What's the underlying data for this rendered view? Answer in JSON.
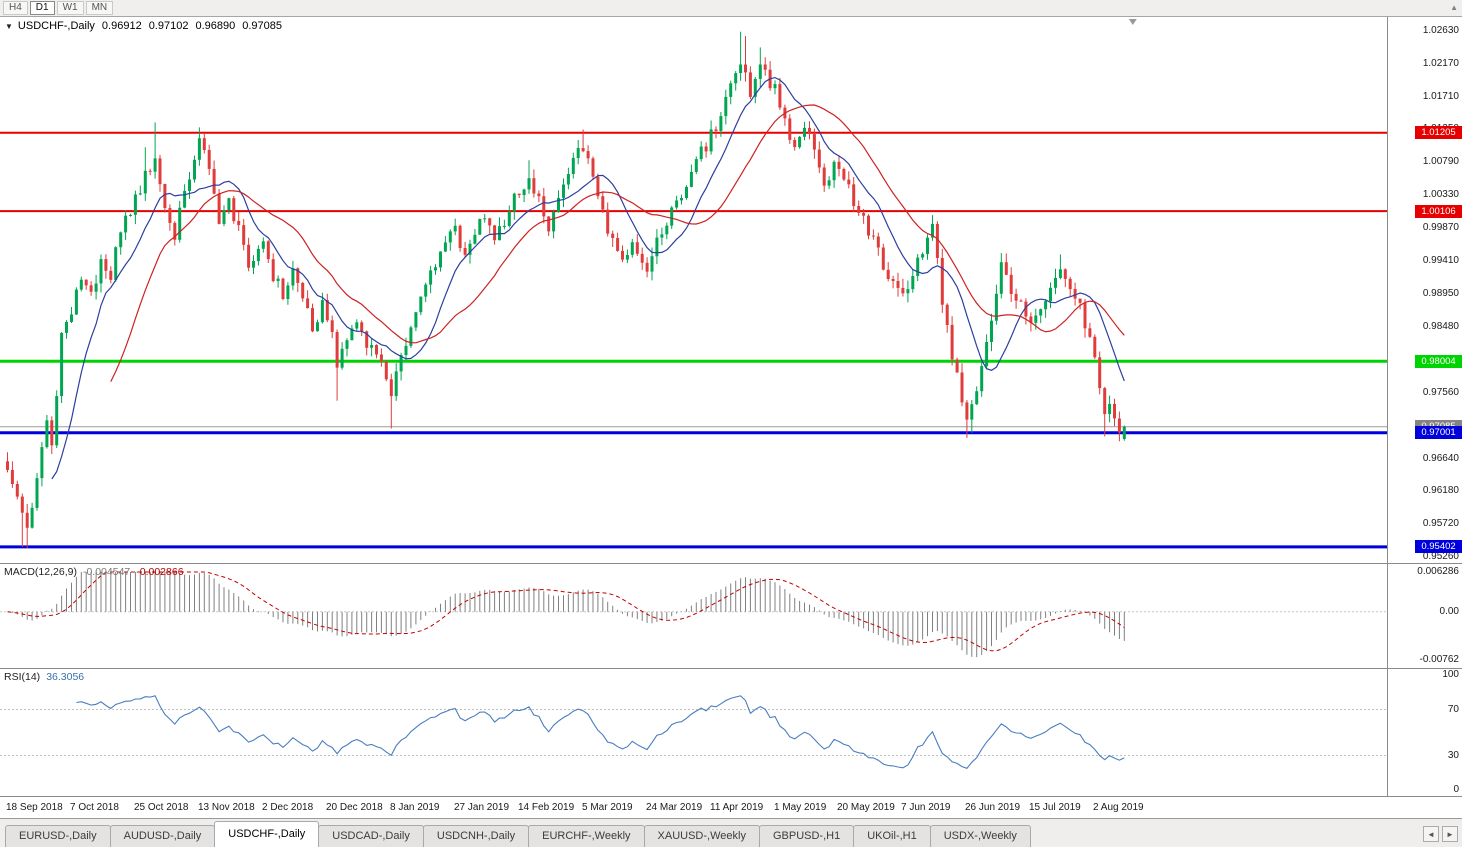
{
  "toolbar": {
    "timeframes": [
      {
        "label": "H4",
        "active": false
      },
      {
        "label": "D1",
        "active": true
      },
      {
        "label": "W1",
        "active": false
      },
      {
        "label": "MN",
        "active": false
      }
    ]
  },
  "chart_header": {
    "symbol": "USDCHF-,Daily",
    "open": "0.96912",
    "high": "0.97102",
    "low": "0.96890",
    "close": "0.97085"
  },
  "macd_header": {
    "name": "MACD(12,26,9)",
    "value_main": "-0.004547",
    "value_signal": "-0.002866"
  },
  "rsi_header": {
    "name": "RSI(14)",
    "value": "36.3056"
  },
  "chart_data": {
    "type": "candlestick",
    "symbol": "USDCHF",
    "timeframe": "Daily",
    "n_candles": 228,
    "current_ohlc": {
      "open": 0.96912,
      "high": 0.97102,
      "low": 0.9689,
      "close": 0.97085
    },
    "price_axis": {
      "tick_step": 0.0046,
      "ticks": [
        "1.02630",
        "1.02170",
        "1.01710",
        "1.01250",
        "1.00790",
        "1.00330",
        "0.99870",
        "0.99410",
        "0.98950",
        "0.98480",
        "0.98020",
        "0.97560",
        "0.97100",
        "0.96640",
        "0.96180",
        "0.95720",
        "0.95260"
      ]
    },
    "hlines": [
      {
        "price": 1.01205,
        "label": "1.01205",
        "color": "#e60000",
        "width": 2
      },
      {
        "price": 1.00106,
        "label": "1.00106",
        "color": "#e60000",
        "width": 2
      },
      {
        "price": 0.98004,
        "label": "0.98004",
        "color": "#00d400",
        "width": 3
      },
      {
        "price": 0.97001,
        "label": "0.97001",
        "color": "#0000dd",
        "width": 3
      },
      {
        "price": 0.95402,
        "label": "0.95402",
        "color": "#0000dd",
        "width": 3
      }
    ],
    "bid_line": {
      "price": 0.97085,
      "label": "0.97085",
      "color": "#9b9b9b",
      "tag_color": "#848484"
    },
    "x_labels": [
      {
        "i": 0,
        "label": "18 Sep 2018"
      },
      {
        "i": 13,
        "label": "7 Oct 2018"
      },
      {
        "i": 26,
        "label": "25 Oct 2018"
      },
      {
        "i": 39,
        "label": "13 Nov 2018"
      },
      {
        "i": 52,
        "label": "2 Dec 2018"
      },
      {
        "i": 65,
        "label": "20 Dec 2018"
      },
      {
        "i": 78,
        "label": "8 Jan 2019"
      },
      {
        "i": 91,
        "label": "27 Jan 2019"
      },
      {
        "i": 104,
        "label": "14 Feb 2019"
      },
      {
        "i": 117,
        "label": "5 Mar 2019"
      },
      {
        "i": 130,
        "label": "24 Mar 2019"
      },
      {
        "i": 143,
        "label": "11 Apr 2019"
      },
      {
        "i": 156,
        "label": "1 May 2019"
      },
      {
        "i": 169,
        "label": "20 May 2019"
      },
      {
        "i": 182,
        "label": "7 Jun 2019"
      },
      {
        "i": 195,
        "label": "26 Jun 2019"
      },
      {
        "i": 208,
        "label": "15 Jul 2019"
      },
      {
        "i": 221,
        "label": "2 Aug 2019"
      }
    ],
    "price_path": [
      [
        0,
        0.9655
      ],
      [
        2,
        0.9612
      ],
      [
        4,
        0.9562
      ],
      [
        6,
        0.9642
      ],
      [
        8,
        0.9718
      ],
      [
        9,
        0.9682
      ],
      [
        10,
        0.9762
      ],
      [
        11,
        0.9838
      ],
      [
        13,
        0.9868
      ],
      [
        15,
        0.9918
      ],
      [
        17,
        0.9892
      ],
      [
        19,
        0.9948
      ],
      [
        21,
        0.9922
      ],
      [
        23,
        0.9978
      ],
      [
        26,
        1.0028
      ],
      [
        28,
        1.0058
      ],
      [
        30,
        1.0088
      ],
      [
        32,
        1.0012
      ],
      [
        34,
        0.9972
      ],
      [
        36,
        1.0042
      ],
      [
        38,
        1.0088
      ],
      [
        39,
        1.0118
      ],
      [
        41,
        1.0062
      ],
      [
        43,
        1.0002
      ],
      [
        45,
        1.0022
      ],
      [
        47,
        0.9982
      ],
      [
        49,
        0.9942
      ],
      [
        52,
        0.9965
      ],
      [
        54,
        0.9922
      ],
      [
        56,
        0.9892
      ],
      [
        58,
        0.9928
      ],
      [
        60,
        0.9888
      ],
      [
        62,
        0.9852
      ],
      [
        64,
        0.9878
      ],
      [
        65,
        0.9862
      ],
      [
        67,
        0.9802
      ],
      [
        69,
        0.9832
      ],
      [
        71,
        0.9856
      ],
      [
        73,
        0.983
      ],
      [
        75,
        0.9806
      ],
      [
        77,
        0.9782
      ],
      [
        78,
        0.9762
      ],
      [
        80,
        0.98
      ],
      [
        82,
        0.9845
      ],
      [
        84,
        0.9885
      ],
      [
        86,
        0.9925
      ],
      [
        88,
        0.9955
      ],
      [
        91,
        0.9985
      ],
      [
        93,
        0.9952
      ],
      [
        95,
        0.9985
      ],
      [
        97,
        1.0008
      ],
      [
        99,
        0.9975
      ],
      [
        101,
        1.0
      ],
      [
        104,
        1.004
      ],
      [
        106,
        1.006
      ],
      [
        108,
        1.0022
      ],
      [
        110,
        0.9992
      ],
      [
        112,
        1.003
      ],
      [
        114,
        1.006
      ],
      [
        116,
        1.009
      ],
      [
        117,
        1.0105
      ],
      [
        119,
        1.005
      ],
      [
        121,
        1.0005
      ],
      [
        123,
        0.9975
      ],
      [
        125,
        0.9945
      ],
      [
        127,
        0.9965
      ],
      [
        130,
        0.9935
      ],
      [
        132,
        0.9965
      ],
      [
        134,
        0.9995
      ],
      [
        136,
        1.0015
      ],
      [
        138,
        1.0045
      ],
      [
        140,
        1.008
      ],
      [
        143,
        1.0115
      ],
      [
        145,
        1.015
      ],
      [
        147,
        1.019
      ],
      [
        149,
        1.0225
      ],
      [
        151,
        1.018
      ],
      [
        153,
        1.021
      ],
      [
        156,
        1.0185
      ],
      [
        158,
        1.014
      ],
      [
        160,
        1.01
      ],
      [
        162,
        1.0135
      ],
      [
        164,
        1.009
      ],
      [
        166,
        1.0055
      ],
      [
        169,
        1.008
      ],
      [
        171,
        1.004
      ],
      [
        173,
        1.001
      ],
      [
        175,
        0.9985
      ],
      [
        177,
        0.995
      ],
      [
        179,
        0.9915
      ],
      [
        182,
        0.989
      ],
      [
        185,
        0.994
      ],
      [
        188,
        0.999
      ],
      [
        190,
        0.989
      ],
      [
        192,
        0.98
      ],
      [
        195,
        0.9725
      ],
      [
        197,
        0.9765
      ],
      [
        199,
        0.9825
      ],
      [
        202,
        0.993
      ],
      [
        205,
        0.989
      ],
      [
        208,
        0.9845
      ],
      [
        211,
        0.9875
      ],
      [
        214,
        0.993
      ],
      [
        217,
        0.989
      ],
      [
        219,
        0.9855
      ],
      [
        221,
        0.98
      ],
      [
        222,
        0.9752
      ],
      [
        223,
        0.972
      ],
      [
        224,
        0.9748
      ],
      [
        225,
        0.9722
      ],
      [
        226,
        0.9698
      ],
      [
        227,
        0.97085
      ]
    ],
    "wick_overrides": [
      {
        "i": 3,
        "low": 0.954
      },
      {
        "i": 4,
        "low": 0.9538
      },
      {
        "i": 28,
        "high": 1.01
      },
      {
        "i": 30,
        "high": 1.0135
      },
      {
        "i": 39,
        "high": 1.0128
      },
      {
        "i": 67,
        "low": 0.9745
      },
      {
        "i": 78,
        "low": 0.9706
      },
      {
        "i": 106,
        "high": 1.0082
      },
      {
        "i": 117,
        "high": 1.0125
      },
      {
        "i": 149,
        "high": 1.0262
      },
      {
        "i": 150,
        "high": 1.0256
      },
      {
        "i": 153,
        "high": 1.024
      },
      {
        "i": 188,
        "high": 1.0005
      },
      {
        "i": 195,
        "low": 0.9693
      },
      {
        "i": 196,
        "low": 0.97
      },
      {
        "i": 202,
        "high": 0.9952
      },
      {
        "i": 214,
        "high": 0.995
      },
      {
        "i": 223,
        "low": 0.9695
      }
    ],
    "ma": [
      {
        "type": "sma",
        "period": 10,
        "color": "#2c3ea0"
      },
      {
        "type": "sma",
        "period": 22,
        "color": "#cc2222"
      }
    ],
    "macd": {
      "fast": 12,
      "slow": 26,
      "signal": 9,
      "axis_max": 0.006286,
      "axis_min": -0.00762,
      "axis_labels": [
        "0.006286",
        "0.00",
        "-0.00762"
      ],
      "last_main": -0.004547,
      "last_signal": -0.002866,
      "hist_color": "#808080",
      "signal_color": "#c40000"
    },
    "rsi": {
      "period": 14,
      "levels": [
        70,
        30
      ],
      "axis_labels": [
        "100",
        "70",
        "30",
        "0"
      ],
      "last": 36.3056,
      "color": "#4a7ebf"
    },
    "colors": {
      "candle_up": "#00a651",
      "candle_down": "#e03c3c",
      "background": "#ffffff"
    }
  },
  "tabs": [
    {
      "label": "EURUSD-,Daily",
      "active": false
    },
    {
      "label": "AUDUSD-,Daily",
      "active": false
    },
    {
      "label": "USDCHF-,Daily",
      "active": true
    },
    {
      "label": "USDCAD-,Daily",
      "active": false
    },
    {
      "label": "USDCNH-,Daily",
      "active": false
    },
    {
      "label": "EURCHF-,Weekly",
      "active": false
    },
    {
      "label": "XAUUSD-,Weekly",
      "active": false
    },
    {
      "label": "GBPUSD-,H1",
      "active": false
    },
    {
      "label": "UKOil-,H1",
      "active": false
    },
    {
      "label": "USDX-,Weekly",
      "active": false
    }
  ],
  "tab_arrows": {
    "left": "◄",
    "right": "►"
  },
  "toolbar_up_icon": "▲",
  "collapse_icon": "▼"
}
